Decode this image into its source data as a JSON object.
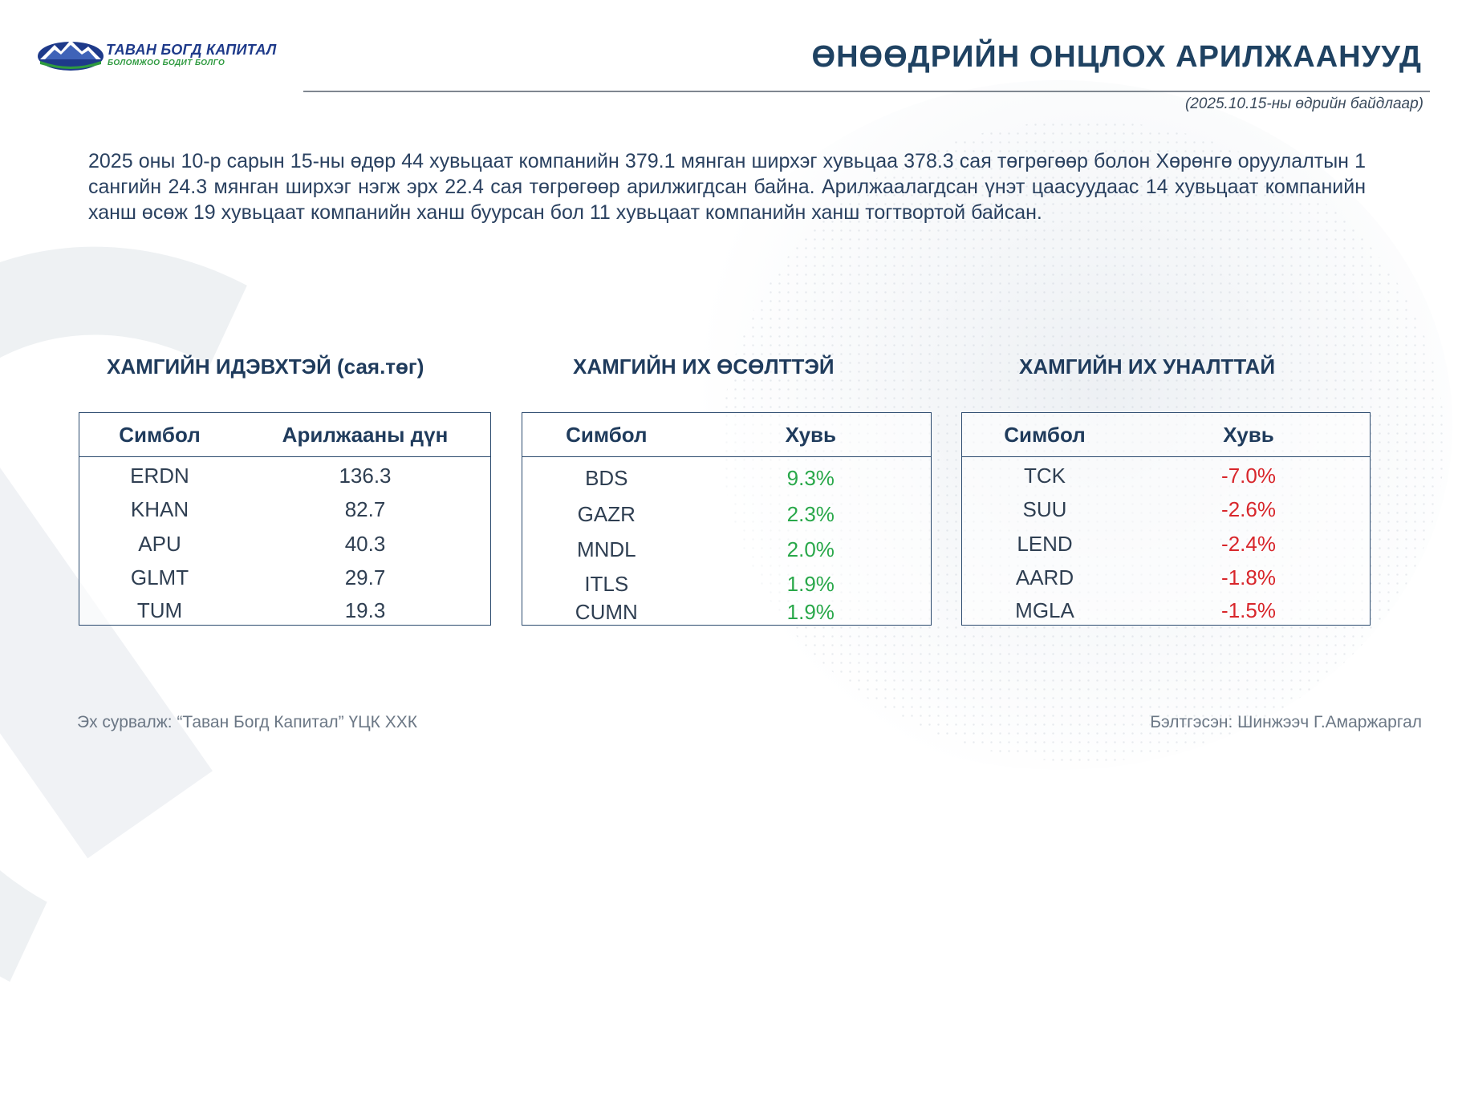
{
  "brand": {
    "name": "ТАВАН БОГД КАПИТАЛ",
    "slogan": "БОЛОМЖОО БОДИТ БОЛГО",
    "colors": {
      "navy": "#1e3a8a",
      "green": "#2e9a3f",
      "title": "#1f4262"
    }
  },
  "header": {
    "title": "ӨНӨӨДРИЙН ОНЦЛОХ АРИЛЖААНУУД",
    "as_of": "(2025.10.15-ны өдрийн байдлаар)"
  },
  "summary": "2025 оны 10-р сарын 15-ны өдөр 44 хувьцаат компанийн 379.1 мянган ширхэг хувьцаа 378.3 сая төгрөгөөр болон Хөрөнгө оруулалтын 1 сангийн 24.3 мянган ширхэг нэгж эрх 22.4 сая төгрөгөөр арилжигдсан байна. Арилжаалагдсан үнэт цаасуудаас 14 хувьцаат компанийн ханш өсөж 19 хувьцаат компанийн ханш буурсан бол 11 хувьцаат компанийн ханш тогтвортой байсан.",
  "tables": {
    "active": {
      "title": "ХАМГИЙН ИДЭВХТЭЙ (сая.төг)",
      "headers": [
        "Симбол",
        "Арилжааны дүн"
      ],
      "rows": [
        {
          "symbol": "ERDN",
          "value": "136.3"
        },
        {
          "symbol": "KHAN",
          "value": "82.7"
        },
        {
          "symbol": "APU",
          "value": "40.3"
        },
        {
          "symbol": "GLMT",
          "value": "29.7"
        },
        {
          "symbol": "TUM",
          "value": "19.3"
        }
      ]
    },
    "gainers": {
      "title": "ХАМГИЙН ИХ ӨСӨЛТТЭЙ",
      "headers": [
        "Симбол",
        "Хувь"
      ],
      "value_color": "#29a84a",
      "rows": [
        {
          "symbol": "BDS",
          "value": "9.3%"
        },
        {
          "symbol": "GAZR",
          "value": "2.3%"
        },
        {
          "symbol": "MNDL",
          "value": "2.0%"
        },
        {
          "symbol": "ITLS",
          "value": "1.9%"
        },
        {
          "symbol": "CUMN",
          "value": "1.9%"
        }
      ]
    },
    "losers": {
      "title": "ХАМГИЙН ИХ УНАЛТТАЙ",
      "headers": [
        "Симбол",
        "Хувь"
      ],
      "value_color": "#d8262b",
      "rows": [
        {
          "symbol": "TCK",
          "value": "-7.0%"
        },
        {
          "symbol": "SUU",
          "value": "-2.6%"
        },
        {
          "symbol": "LEND",
          "value": "-2.4%"
        },
        {
          "symbol": "AARD",
          "value": "-1.8%"
        },
        {
          "symbol": "MGLA",
          "value": "-1.5%"
        }
      ]
    }
  },
  "footer": {
    "source": "Эх сурвалж: “Таван Богд Капитал” ҮЦК ХХК",
    "prepared_by": "Бэлтгэсэн: Шинжээч Г.Амаржаргал"
  }
}
